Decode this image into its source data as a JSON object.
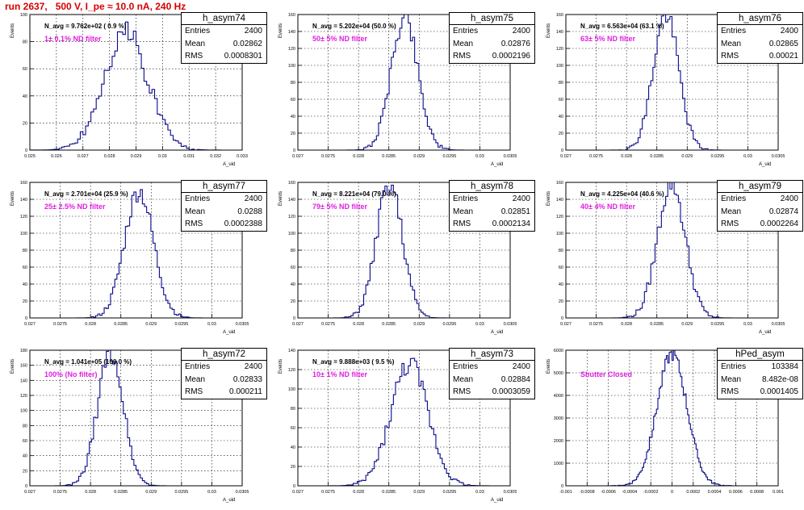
{
  "header": {
    "run_label": "run 2637,   500 V, I_pe ≈ 10.0 nA, 240 Hz"
  },
  "stat_keys": {
    "entries": "Entries",
    "mean": "Mean",
    "rms": "RMS"
  },
  "colors": {
    "histogram": "#0a0a8a",
    "filter_label": "#e020e0",
    "run_label": "#d40000"
  },
  "chart_data": [
    {
      "type": "histogram",
      "stats": {
        "title": "h_asym74",
        "entries": "2400",
        "mean": "0.02862",
        "rms": "0.0008301"
      },
      "n_avg": "N_avg = 9.762e+02 ( 0.9 %)",
      "filter": "1± 0.1% ND filter",
      "ylabel": "Events",
      "xlabel": "A_uid",
      "xlim": [
        0.025,
        0.033
      ],
      "ylim": [
        0,
        100
      ],
      "x_ticks": [
        "0.025",
        "0.026",
        "0.027",
        "0.028",
        "0.029",
        "0.03",
        "0.031",
        "0.032",
        "0.033"
      ],
      "y_ticks": [
        "0",
        "20",
        "40",
        "60",
        "80",
        "100"
      ],
      "dist": {
        "mean": 0.02862,
        "rms": 0.0008301,
        "peak": 86,
        "bins": 80,
        "seed": 74
      }
    },
    {
      "type": "histogram",
      "stats": {
        "title": "h_asym75",
        "entries": "2400",
        "mean": "0.02876",
        "rms": "0.0002196"
      },
      "n_avg": "N_avg = 5.202e+04 (50.0 %)",
      "filter": "50± 5% ND filter",
      "ylabel": "Events",
      "xlabel": "A_uid",
      "xlim": [
        0.027,
        0.0305
      ],
      "ylim": [
        0,
        160
      ],
      "x_ticks": [
        "0.027",
        "0.0275",
        "0.028",
        "0.0285",
        "0.029",
        "0.0295",
        "0.03",
        "0.0305"
      ],
      "y_ticks": [
        "0",
        "20",
        "40",
        "60",
        "80",
        "100",
        "120",
        "140",
        "160"
      ],
      "dist": {
        "mean": 0.02876,
        "rms": 0.0002196,
        "peak": 158,
        "bins": 100,
        "seed": 75
      }
    },
    {
      "type": "histogram",
      "stats": {
        "title": "h_asym76",
        "entries": "2400",
        "mean": "0.02865",
        "rms": "0.00021"
      },
      "n_avg": "N_avg = 6.563e+04 (63.1 %)",
      "filter": "63± 5% ND filter",
      "ylabel": "Events",
      "xlabel": "A_uid",
      "xlim": [
        0.027,
        0.0305
      ],
      "ylim": [
        0,
        160
      ],
      "x_ticks": [
        "0.027",
        "0.0275",
        "0.028",
        "0.0285",
        "0.029",
        "0.0295",
        "0.03",
        "0.0305"
      ],
      "y_ticks": [
        "0",
        "20",
        "40",
        "60",
        "80",
        "100",
        "120",
        "140",
        "160"
      ],
      "dist": {
        "mean": 0.02865,
        "rms": 0.00021,
        "peak": 160,
        "bins": 100,
        "seed": 76
      }
    },
    {
      "type": "histogram",
      "stats": {
        "title": "h_asym77",
        "entries": "2400",
        "mean": "0.0288",
        "rms": "0.0002388"
      },
      "n_avg": "N_avg = 2.701e+04 (25.9 %)",
      "filter": "25± 2.5% ND filter",
      "ylabel": "Events",
      "xlabel": "A_uid",
      "xlim": [
        0.027,
        0.0305
      ],
      "ylim": [
        0,
        160
      ],
      "x_ticks": [
        "0.027",
        "0.0275",
        "0.028",
        "0.0285",
        "0.029",
        "0.0295",
        "0.03",
        "0.0305"
      ],
      "y_ticks": [
        "0",
        "20",
        "40",
        "60",
        "80",
        "100",
        "120",
        "140",
        "160"
      ],
      "dist": {
        "mean": 0.0288,
        "rms": 0.0002388,
        "peak": 150,
        "bins": 100,
        "seed": 77
      }
    },
    {
      "type": "histogram",
      "stats": {
        "title": "h_asym78",
        "entries": "2400",
        "mean": "0.02851",
        "rms": "0.0002134"
      },
      "n_avg": "N_avg = 8.221e+04 (79.0 %)",
      "filter": "79± 5% ND filter",
      "ylabel": "Events",
      "xlabel": "A_uid",
      "xlim": [
        0.027,
        0.0305
      ],
      "ylim": [
        0,
        160
      ],
      "x_ticks": [
        "0.027",
        "0.0275",
        "0.028",
        "0.0285",
        "0.029",
        "0.0295",
        "0.03",
        "0.0305"
      ],
      "y_ticks": [
        "0",
        "20",
        "40",
        "60",
        "80",
        "100",
        "120",
        "140",
        "160"
      ],
      "dist": {
        "mean": 0.02851,
        "rms": 0.0002134,
        "peak": 158,
        "bins": 100,
        "seed": 78
      }
    },
    {
      "type": "histogram",
      "stats": {
        "title": "h_asym79",
        "entries": "2400",
        "mean": "0.02874",
        "rms": "0.0002264"
      },
      "n_avg": "N_avg = 4.225e+04 (40.6 %)",
      "filter": "40± 4% ND filter",
      "ylabel": "Events",
      "xlabel": "A_uid",
      "xlim": [
        0.027,
        0.0305
      ],
      "ylim": [
        0,
        160
      ],
      "x_ticks": [
        "0.027",
        "0.0275",
        "0.028",
        "0.0285",
        "0.029",
        "0.0295",
        "0.03",
        "0.0305"
      ],
      "y_ticks": [
        "0",
        "20",
        "40",
        "60",
        "80",
        "100",
        "120",
        "140",
        "160"
      ],
      "dist": {
        "mean": 0.02874,
        "rms": 0.0002264,
        "peak": 160,
        "bins": 100,
        "seed": 79
      }
    },
    {
      "type": "histogram",
      "stats": {
        "title": "h_asym72",
        "entries": "2400",
        "mean": "0.02833",
        "rms": "0.000211"
      },
      "n_avg": "N_avg = 1.041e+05 (100.0 %)",
      "filter": "100% (No filter)",
      "ylabel": "Events",
      "xlabel": "A_uid",
      "xlim": [
        0.027,
        0.0305
      ],
      "ylim": [
        0,
        180
      ],
      "x_ticks": [
        "0.027",
        "0.0275",
        "0.028",
        "0.0285",
        "0.029",
        "0.0295",
        "0.03",
        "0.0305"
      ],
      "y_ticks": [
        "0",
        "20",
        "40",
        "60",
        "80",
        "100",
        "120",
        "140",
        "160",
        "180"
      ],
      "dist": {
        "mean": 0.02833,
        "rms": 0.000211,
        "peak": 178,
        "bins": 100,
        "seed": 72
      }
    },
    {
      "type": "histogram",
      "stats": {
        "title": "h_asym73",
        "entries": "2400",
        "mean": "0.02884",
        "rms": "0.0003059"
      },
      "n_avg": "N_avg = 9.888e+03 ( 9.5 %)",
      "filter": "10± 1% ND filter",
      "ylabel": "Events",
      "xlabel": "A_uid",
      "xlim": [
        0.027,
        0.0305
      ],
      "ylim": [
        0,
        140
      ],
      "x_ticks": [
        "0.027",
        "0.0275",
        "0.028",
        "0.0285",
        "0.029",
        "0.0295",
        "0.03",
        "0.0305"
      ],
      "y_ticks": [
        "0",
        "20",
        "40",
        "60",
        "80",
        "100",
        "120",
        "140"
      ],
      "dist": {
        "mean": 0.02884,
        "rms": 0.0003059,
        "peak": 126,
        "bins": 100,
        "seed": 73
      }
    },
    {
      "type": "histogram",
      "stats": {
        "title": "hPed_asym",
        "entries": "103384",
        "mean": "8.482e-08",
        "rms": "0.0001405"
      },
      "n_avg": "",
      "filter": "Shutter Closed",
      "ylabel": "Events",
      "xlabel": "",
      "xlim": [
        -0.001,
        0.001
      ],
      "ylim": [
        0,
        6000
      ],
      "x_ticks": [
        "-0.001",
        "-0.0008",
        "-0.0006",
        "-0.0004",
        "-0.0002",
        "0",
        "0.0002",
        "0.0004",
        "0.0006",
        "0.0008",
        "0.001"
      ],
      "y_ticks": [
        "0",
        "1000",
        "2000",
        "3000",
        "4000",
        "5000",
        "6000"
      ],
      "dist": {
        "mean": 0.0,
        "rms": 0.0001405,
        "peak": 5850,
        "bins": 150,
        "seed": 90
      }
    }
  ]
}
